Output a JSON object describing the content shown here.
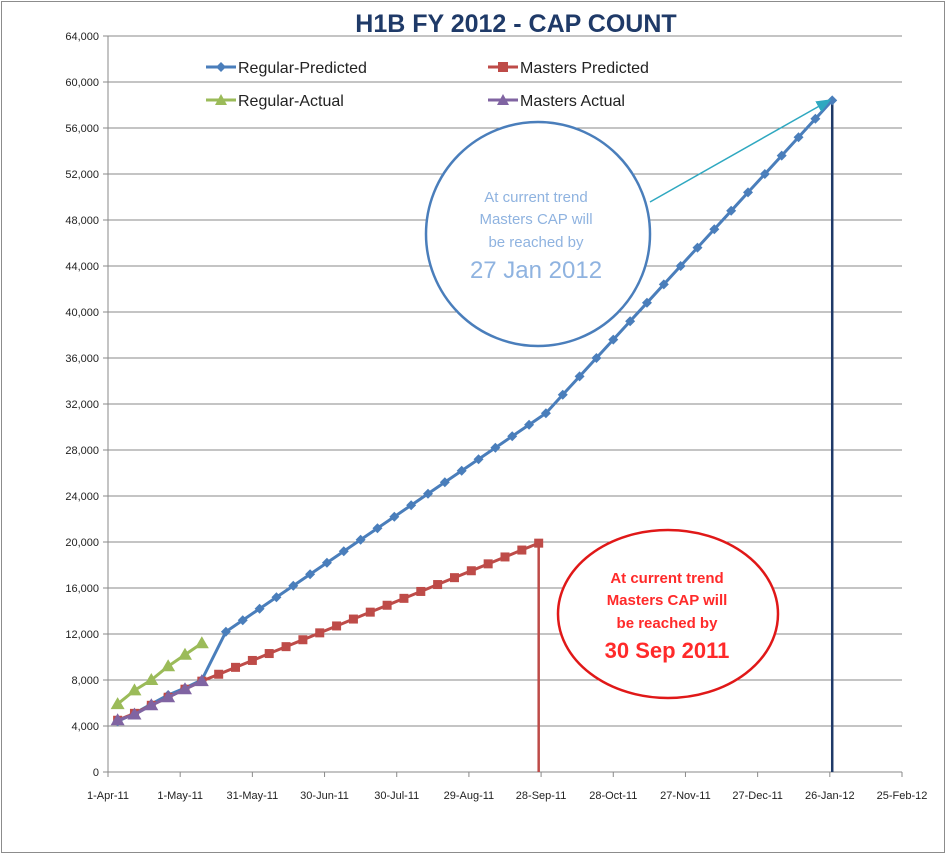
{
  "chart_data": {
    "type": "line",
    "title": "H1B FY 2012 - CAP COUNT",
    "xlabel": "",
    "ylabel": "",
    "x_axis": {
      "type": "date",
      "min": "2011-04-01",
      "max": "2012-02-25",
      "tick_dates": [
        "2011-04-01",
        "2011-05-01",
        "2011-05-31",
        "2011-06-30",
        "2011-07-30",
        "2011-08-29",
        "2011-09-28",
        "2011-10-28",
        "2011-11-27",
        "2011-12-27",
        "2012-01-26",
        "2012-02-25"
      ],
      "tick_labels": [
        "1-Apr-11",
        "1-May-11",
        "31-May-11",
        "30-Jun-11",
        "30-Jul-11",
        "29-Aug-11",
        "28-Sep-11",
        "28-Oct-11",
        "27-Nov-11",
        "27-Dec-11",
        "26-Jan-12",
        "25-Feb-12"
      ]
    },
    "y_axis": {
      "min": 0,
      "max": 64000,
      "ticks": [
        0,
        4000,
        8000,
        12000,
        16000,
        20000,
        24000,
        28000,
        32000,
        36000,
        40000,
        44000,
        48000,
        52000,
        56000,
        60000,
        64000
      ],
      "tick_labels": [
        "0",
        "4,000",
        "8,000",
        "12,000",
        "16,000",
        "20,000",
        "24,000",
        "28,000",
        "32,000",
        "36,000",
        "40,000",
        "44,000",
        "48,000",
        "52,000",
        "56,000",
        "60,000",
        "64,000"
      ]
    },
    "grid": true,
    "legend_position": "top",
    "series": [
      {
        "name": "Regular-Predicted",
        "color": "#4a7ebb",
        "marker": "diamond",
        "points": [
          [
            "2011-04-05",
            4400
          ],
          [
            "2011-04-12",
            5100
          ],
          [
            "2011-04-19",
            5900
          ],
          [
            "2011-04-26",
            6700
          ],
          [
            "2011-05-03",
            7300
          ],
          [
            "2011-05-10",
            8000
          ],
          [
            "2011-05-17",
            8900
          ],
          [
            "2011-05-24",
            9900
          ],
          [
            "2011-05-31",
            10900
          ],
          [
            "2011-06-07",
            11900
          ],
          [
            "2011-06-14",
            12900
          ],
          [
            "2011-06-21",
            13900
          ],
          [
            "2011-05-20",
            12200
          ],
          [
            "2011-05-27",
            13200
          ],
          [
            "2011-06-03",
            14200
          ],
          [
            "2011-06-10",
            15200
          ],
          [
            "2011-06-17",
            16200
          ],
          [
            "2011-06-24",
            17200
          ],
          [
            "2011-07-01",
            18200
          ],
          [
            "2011-07-08",
            19200
          ],
          [
            "2011-07-15",
            20200
          ],
          [
            "2011-07-22",
            21200
          ],
          [
            "2011-07-29",
            22200
          ],
          [
            "2011-08-05",
            23200
          ],
          [
            "2011-08-12",
            24200
          ],
          [
            "2011-08-19",
            25200
          ],
          [
            "2011-08-26",
            26200
          ],
          [
            "2011-09-02",
            27200
          ],
          [
            "2011-09-09",
            28200
          ],
          [
            "2011-09-16",
            29200
          ],
          [
            "2011-09-23",
            30200
          ],
          [
            "2011-09-30",
            31200
          ],
          [
            "2011-10-07",
            32800
          ],
          [
            "2011-10-14",
            34400
          ],
          [
            "2011-10-21",
            36000
          ],
          [
            "2011-10-28",
            37600
          ],
          [
            "2011-11-04",
            39200
          ],
          [
            "2011-11-11",
            40800
          ],
          [
            "2011-11-18",
            42400
          ],
          [
            "2011-11-25",
            44000
          ],
          [
            "2011-12-02",
            45600
          ],
          [
            "2011-12-09",
            47200
          ],
          [
            "2011-12-16",
            48800
          ],
          [
            "2011-12-23",
            50400
          ],
          [
            "2011-12-30",
            52000
          ],
          [
            "2012-01-06",
            53600
          ],
          [
            "2012-01-13",
            55200
          ],
          [
            "2012-01-20",
            56800
          ],
          [
            "2012-01-27",
            58400
          ]
        ]
      },
      {
        "name": "Masters Predicted",
        "color": "#be4b48",
        "marker": "square",
        "points": [
          [
            "2011-04-05",
            4500
          ],
          [
            "2011-04-12",
            5100
          ],
          [
            "2011-04-19",
            5800
          ],
          [
            "2011-04-26",
            6500
          ],
          [
            "2011-05-03",
            7200
          ],
          [
            "2011-05-10",
            7900
          ],
          [
            "2011-05-17",
            8500
          ],
          [
            "2011-05-24",
            9100
          ],
          [
            "2011-05-31",
            9700
          ],
          [
            "2011-06-07",
            10300
          ],
          [
            "2011-06-14",
            10900
          ],
          [
            "2011-06-21",
            11500
          ],
          [
            "2011-06-28",
            12100
          ],
          [
            "2011-07-05",
            12700
          ],
          [
            "2011-07-12",
            13300
          ],
          [
            "2011-07-19",
            13900
          ],
          [
            "2011-07-26",
            14500
          ],
          [
            "2011-08-02",
            15100
          ],
          [
            "2011-08-09",
            15700
          ],
          [
            "2011-08-16",
            16300
          ],
          [
            "2011-08-23",
            16900
          ],
          [
            "2011-08-30",
            17500
          ],
          [
            "2011-09-06",
            18100
          ],
          [
            "2011-09-13",
            18700
          ],
          [
            "2011-09-20",
            19300
          ],
          [
            "2011-09-27",
            19900
          ]
        ]
      },
      {
        "name": "Regular-Actual",
        "color": "#9bbb59",
        "marker": "triangle",
        "points": [
          [
            "2011-04-05",
            5900
          ],
          [
            "2011-04-12",
            7100
          ],
          [
            "2011-04-19",
            8000
          ],
          [
            "2011-04-26",
            9200
          ],
          [
            "2011-05-03",
            10200
          ],
          [
            "2011-05-10",
            11200
          ]
        ]
      },
      {
        "name": "Masters Actual",
        "color": "#8064a2",
        "marker": "triangle",
        "points": [
          [
            "2011-04-05",
            4500
          ],
          [
            "2011-04-12",
            5000
          ],
          [
            "2011-04-19",
            5800
          ],
          [
            "2011-04-26",
            6500
          ],
          [
            "2011-05-03",
            7200
          ],
          [
            "2011-05-10",
            7900
          ]
        ]
      }
    ],
    "cap_markers": [
      {
        "series": "Masters Predicted",
        "date": "2011-09-27",
        "value": 19900,
        "color": "#be4b48"
      },
      {
        "series": "Regular-Predicted",
        "date": "2012-01-27",
        "value": 58400,
        "color": "#1f3a68"
      }
    ],
    "annotations": [
      {
        "name": "regular-cap-callout",
        "lines": [
          "At current trend",
          "Masters CAP will",
          "be reached by"
        ],
        "emphasis": "27 Jan 2012",
        "border_color": "#4a7ebb",
        "text_color": "#8fb3e0",
        "arrow_color": "#2fa8c0"
      },
      {
        "name": "masters-cap-callout",
        "lines": [
          "At current trend",
          "Masters CAP will",
          "be reached by"
        ],
        "emphasis": "30 Sep 2011",
        "border_color": "#e01818",
        "text_color": "#ff2a2a"
      }
    ]
  }
}
